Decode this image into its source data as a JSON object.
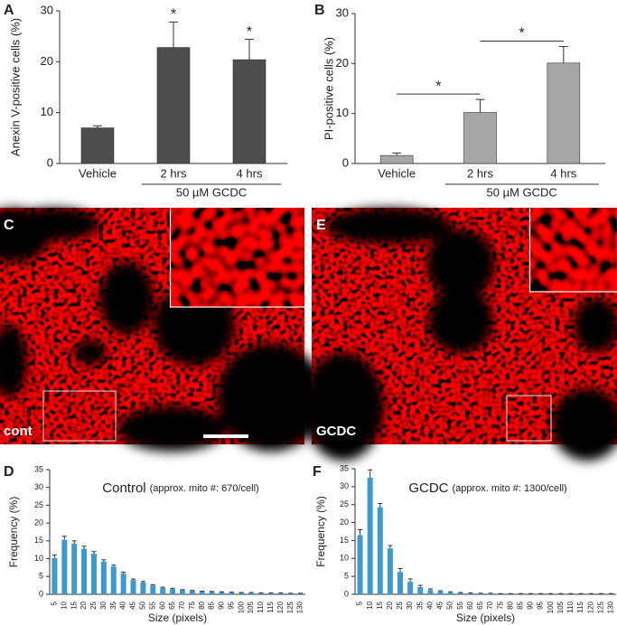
{
  "chart_data": [
    {
      "type": "bar",
      "panel": "A",
      "y_label": "Anexin V-positive cells (%)",
      "categories": [
        "Vehicle",
        "2 hrs",
        "4 hrs"
      ],
      "values": [
        7.0,
        22.8,
        20.4
      ],
      "errors": [
        0.4,
        5.0,
        4.0
      ],
      "color": "#4d4d4d",
      "annotations": [
        null,
        "*",
        "*"
      ],
      "group_label": "50 µM GCDC",
      "ylim": [
        0,
        30
      ],
      "yticks": [
        0,
        10,
        20,
        30
      ]
    },
    {
      "type": "bar",
      "panel": "B",
      "y_label": "PI-positive cells (%)",
      "categories": [
        "Vehicle",
        "2 hrs",
        "4 hrs"
      ],
      "values": [
        1.6,
        10.2,
        20.1
      ],
      "errors": [
        0.5,
        2.6,
        3.3
      ],
      "color": "#a6a6a6",
      "significance_labels": [
        "*",
        "*"
      ],
      "group_label": "50 µM GCDC",
      "ylim": [
        0,
        30
      ],
      "yticks": [
        0,
        10,
        20,
        30
      ]
    },
    {
      "type": "bar",
      "panel": "D",
      "title": "Control",
      "subtitle": "(approx. mito #: 670/cell)",
      "x_label": "Size (pixels)",
      "y_label": "Frequency (%)",
      "categories": [
        5,
        10,
        15,
        20,
        25,
        30,
        35,
        40,
        45,
        50,
        55,
        60,
        65,
        70,
        75,
        80,
        85,
        90,
        95,
        100,
        105,
        110,
        115,
        120,
        125,
        130
      ],
      "values": [
        10.2,
        15.3,
        14.2,
        12.8,
        11.4,
        9.2,
        7.8,
        5.8,
        4.0,
        3.3,
        2.5,
        1.8,
        1.5,
        1.2,
        1.0,
        0.8,
        0.7,
        0.6,
        0.5,
        0.4,
        0.4,
        0.3,
        0.3,
        0.3,
        0.2,
        0.2
      ],
      "errors": [
        0.8,
        1.0,
        0.8,
        0.7,
        0.6,
        0.5,
        0.4,
        0.4,
        0.3,
        0.3,
        0.2,
        0.2,
        0.2,
        0.1,
        0.1,
        0.1,
        0.1,
        0.1,
        0.1,
        0.1,
        0.1,
        0.1,
        0.1,
        0.1,
        0.1,
        0.1
      ],
      "color": "#3d9ad1",
      "ylim": [
        0,
        35
      ],
      "yticks": [
        0,
        5,
        10,
        15,
        20,
        25,
        30,
        35
      ]
    },
    {
      "type": "bar",
      "panel": "F",
      "title": "GCDC",
      "subtitle": "(approx. mito #: 1300/cell)",
      "x_label": "Size (pixels)",
      "y_label": "Frequency (%)",
      "categories": [
        5,
        10,
        15,
        20,
        25,
        30,
        35,
        40,
        45,
        50,
        55,
        60,
        65,
        70,
        75,
        80,
        85,
        90,
        95,
        100,
        105,
        110,
        115,
        120,
        125,
        130
      ],
      "values": [
        16.5,
        32.5,
        24.3,
        12.8,
        6.2,
        3.5,
        2.0,
        1.2,
        0.8,
        0.5,
        0.4,
        0.3,
        0.2,
        0.2,
        0.1,
        0.1,
        0.1,
        0.1,
        0.1,
        0.1,
        0.1,
        0.1,
        0.1,
        0.1,
        0.1,
        0.1
      ],
      "errors": [
        1.5,
        2.2,
        1.0,
        0.8,
        1.0,
        0.8,
        0.5,
        0.3,
        0.2,
        0.2,
        0.1,
        0.1,
        0.1,
        0.1,
        0.1,
        0.1,
        0.1,
        0.1,
        0.1,
        0.1,
        0.1,
        0.1,
        0.1,
        0.1,
        0.1,
        0.1
      ],
      "color": "#3d9ad1",
      "ylim": [
        0,
        35
      ],
      "yticks": [
        0,
        5,
        10,
        15,
        20,
        25,
        30,
        35
      ]
    }
  ],
  "images": [
    {
      "panel": "C",
      "label": "cont"
    },
    {
      "panel": "E",
      "label": "GCDC"
    }
  ]
}
